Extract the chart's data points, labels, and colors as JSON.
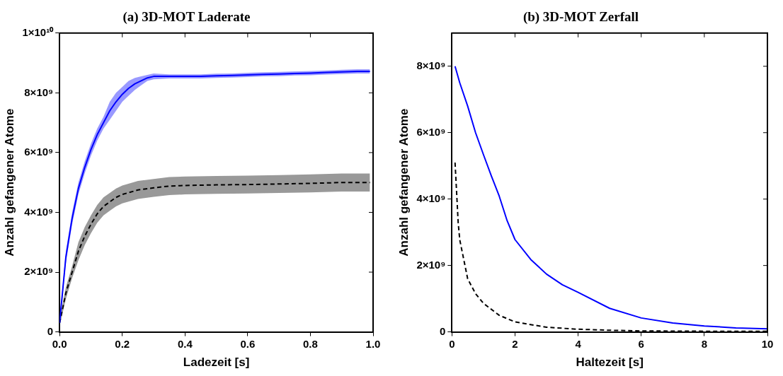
{
  "chart_data": [
    {
      "type": "line",
      "title": "(a) 3D-MOT Laderate",
      "xlabel": "Ladezeit [s]",
      "ylabel": "Anzahl gefangener Atome",
      "xlim": [
        0,
        1
      ],
      "xticks": [
        {
          "value": 0,
          "label": "0.0"
        },
        {
          "value": 0.2,
          "label": "0.2"
        },
        {
          "value": 0.4,
          "label": "0.4"
        },
        {
          "value": 0.6,
          "label": "0.6"
        },
        {
          "value": 0.8,
          "label": "0.8"
        },
        {
          "value": 1,
          "label": "1.0"
        }
      ],
      "ylim": [
        0,
        10000000000
      ],
      "yticks": [
        {
          "value": 0,
          "label": "0"
        },
        {
          "value": 2000000000,
          "label": "2×10⁹"
        },
        {
          "value": 4000000000,
          "label": "4×10⁹"
        },
        {
          "value": 6000000000,
          "label": "6×10⁹"
        },
        {
          "value": 8000000000,
          "label": "8×10⁹"
        },
        {
          "value": 10000000000,
          "label": "1×10¹⁰"
        }
      ],
      "grid": false,
      "legend": false,
      "series": [
        {
          "color": "#0000ff",
          "line_style": "solid",
          "x": [
            0,
            0.02,
            0.04,
            0.06,
            0.08,
            0.1,
            0.12,
            0.14,
            0.16,
            0.18,
            0.2,
            0.22,
            0.24,
            0.26,
            0.28,
            0.3,
            0.35,
            0.4,
            0.45,
            0.5,
            0.55,
            0.6,
            0.65,
            0.7,
            0.75,
            0.8,
            0.85,
            0.9,
            0.95,
            0.99
          ],
          "values": [
            300000000,
            2500000000,
            3800000000,
            4800000000,
            5500000000,
            6100000000,
            6600000000,
            7000000000,
            7400000000,
            7700000000,
            7950000000,
            8150000000,
            8300000000,
            8400000000,
            8500000000,
            8550000000,
            8550000000,
            8550000000,
            8550000000,
            8570000000,
            8580000000,
            8600000000,
            8620000000,
            8630000000,
            8650000000,
            8660000000,
            8680000000,
            8700000000,
            8720000000,
            8720000000
          ],
          "lower": [
            200000000,
            2300000000,
            3600000000,
            4600000000,
            5300000000,
            5900000000,
            6400000000,
            6800000000,
            7100000000,
            7400000000,
            7700000000,
            7900000000,
            8100000000,
            8250000000,
            8400000000,
            8450000000,
            8480000000,
            8480000000,
            8480000000,
            8500000000,
            8510000000,
            8530000000,
            8550000000,
            8560000000,
            8580000000,
            8590000000,
            8610000000,
            8630000000,
            8650000000,
            8650000000
          ],
          "upper": [
            400000000,
            2700000000,
            4000000000,
            5000000000,
            5700000000,
            6300000000,
            6800000000,
            7200000000,
            7700000000,
            8000000000,
            8200000000,
            8400000000,
            8500000000,
            8550000000,
            8600000000,
            8650000000,
            8620000000,
            8620000000,
            8620000000,
            8640000000,
            8650000000,
            8670000000,
            8690000000,
            8700000000,
            8720000000,
            8730000000,
            8750000000,
            8770000000,
            8790000000,
            8790000000
          ]
        },
        {
          "color": "#000000",
          "line_style": "dashed",
          "x": [
            0,
            0.02,
            0.04,
            0.06,
            0.08,
            0.1,
            0.12,
            0.14,
            0.16,
            0.18,
            0.2,
            0.25,
            0.3,
            0.35,
            0.4,
            0.5,
            0.6,
            0.7,
            0.8,
            0.9,
            0.99
          ],
          "values": [
            300000000,
            1300000000,
            2000000000,
            2700000000,
            3200000000,
            3600000000,
            3950000000,
            4200000000,
            4350000000,
            4500000000,
            4600000000,
            4750000000,
            4820000000,
            4880000000,
            4900000000,
            4920000000,
            4930000000,
            4950000000,
            4970000000,
            5000000000,
            5000000000
          ],
          "lower": [
            200000000,
            1100000000,
            1800000000,
            2400000000,
            2900000000,
            3300000000,
            3650000000,
            3900000000,
            4050000000,
            4200000000,
            4300000000,
            4450000000,
            4520000000,
            4580000000,
            4600000000,
            4620000000,
            4630000000,
            4650000000,
            4670000000,
            4700000000,
            4700000000
          ],
          "upper": [
            400000000,
            1500000000,
            2200000000,
            3000000000,
            3500000000,
            3900000000,
            4250000000,
            4500000000,
            4650000000,
            4800000000,
            4900000000,
            5050000000,
            5120000000,
            5180000000,
            5200000000,
            5220000000,
            5230000000,
            5250000000,
            5270000000,
            5300000000,
            5300000000
          ]
        }
      ]
    },
    {
      "type": "line",
      "title": "(b) 3D-MOT Zerfall",
      "xlabel": "Haltezeit [s]",
      "ylabel": "Anzahl gefangener Atome",
      "xlim": [
        0,
        10
      ],
      "xticks": [
        0,
        2,
        4,
        6,
        8,
        10
      ],
      "ylim": [
        0,
        9000000000
      ],
      "yticks": [
        {
          "value": 0,
          "label": "0"
        },
        {
          "value": 2000000000,
          "label": "2×10⁹"
        },
        {
          "value": 4000000000,
          "label": "4×10⁹"
        },
        {
          "value": 6000000000,
          "label": "6×10⁹"
        },
        {
          "value": 8000000000,
          "label": "8×10⁹"
        }
      ],
      "grid": false,
      "legend": false,
      "series": [
        {
          "color": "#0000ff",
          "line_style": "solid",
          "x": [
            0.1,
            0.25,
            0.5,
            0.75,
            1,
            1.25,
            1.5,
            1.75,
            2,
            2.5,
            3,
            3.5,
            4,
            5,
            6,
            7,
            8,
            9,
            10
          ],
          "values": [
            8000000000,
            7500000000,
            6800000000,
            6000000000,
            5340000000,
            4700000000,
            4090000000,
            3350000000,
            2780000000,
            2180000000,
            1740000000,
            1420000000,
            1190000000,
            710000000,
            420000000,
            270000000,
            180000000,
            120000000,
            90000000
          ]
        },
        {
          "color": "#000000",
          "line_style": "dashed",
          "x": [
            0.1,
            0.15,
            0.2,
            0.25,
            0.5,
            0.75,
            1,
            1.5,
            2,
            3,
            4,
            5,
            6,
            8,
            10
          ],
          "values": [
            5100000000,
            4200000000,
            3280000000,
            2770000000,
            1600000000,
            1150000000,
            860000000,
            500000000,
            300000000,
            140000000,
            80000000,
            50000000,
            30000000,
            20000000,
            20000000
          ]
        }
      ]
    }
  ]
}
